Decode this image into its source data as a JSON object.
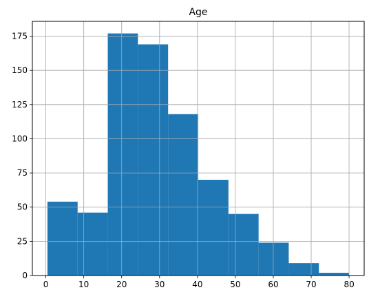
{
  "chart_data": {
    "type": "bar",
    "title": "Age",
    "xlabel": "",
    "ylabel": "",
    "grid": true,
    "bar_color": "#1f77b4",
    "bins": [
      {
        "x0": 0.42,
        "x1": 8.38,
        "count": 54
      },
      {
        "x0": 8.38,
        "x1": 16.34,
        "count": 46
      },
      {
        "x0": 16.34,
        "x1": 24.29,
        "count": 177
      },
      {
        "x0": 24.29,
        "x1": 32.25,
        "count": 169
      },
      {
        "x0": 32.25,
        "x1": 40.21,
        "count": 118
      },
      {
        "x0": 40.21,
        "x1": 48.17,
        "count": 70
      },
      {
        "x0": 48.17,
        "x1": 56.13,
        "count": 45
      },
      {
        "x0": 56.13,
        "x1": 64.08,
        "count": 24
      },
      {
        "x0": 64.08,
        "x1": 72.04,
        "count": 9
      },
      {
        "x0": 72.04,
        "x1": 80.0,
        "count": 2
      }
    ],
    "xlim": [
      -3.56,
      83.98
    ],
    "ylim": [
      0,
      185.85
    ],
    "xticks": [
      0,
      10,
      20,
      30,
      40,
      50,
      60,
      70,
      80
    ],
    "yticks": [
      0,
      25,
      50,
      75,
      100,
      125,
      150,
      175
    ]
  }
}
